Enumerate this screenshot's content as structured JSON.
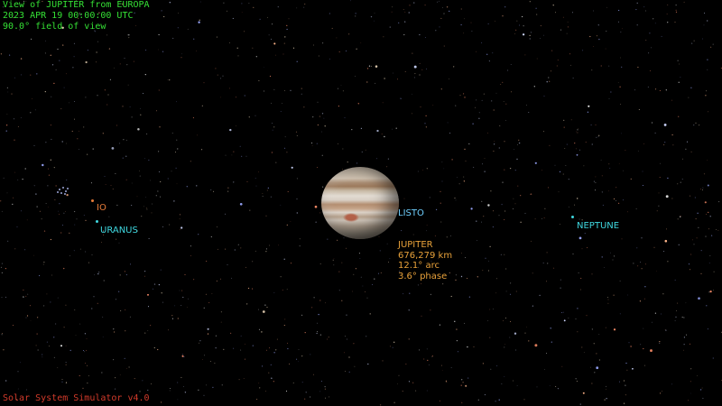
{
  "hud": {
    "line1": "View of JUPITER from EUROPA",
    "line2": "2023 APR 19 00:00:00 UTC",
    "line3": "90.0° field of view"
  },
  "footer": {
    "version": "Solar System Simulator v4.0"
  },
  "bodies": {
    "io": {
      "label": "IO",
      "color": "#e97d3a"
    },
    "uranus": {
      "label": "URANUS",
      "color": "#3fd8e0"
    },
    "callisto": {
      "label": "LISTO",
      "color": "#6fd0ff"
    },
    "neptune": {
      "label": "NEPTUNE",
      "color": "#3fd8e0"
    }
  },
  "target": {
    "name": "JUPITER",
    "distance": "676,279 km",
    "arc": "12.1° arc",
    "phase": "3.6° phase"
  }
}
